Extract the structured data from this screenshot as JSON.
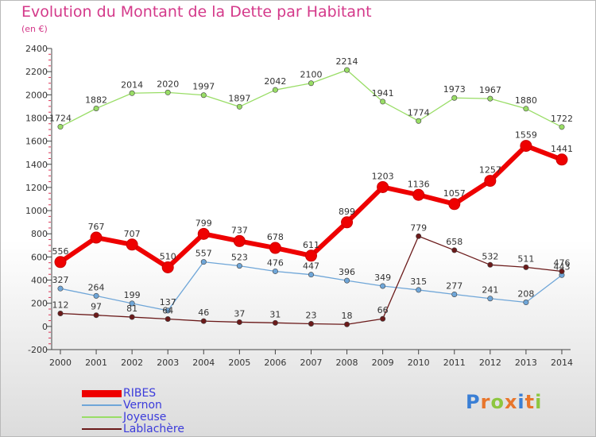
{
  "title": "Evolution du Montant de la Dette par Habitant",
  "unit": "(en €)",
  "logo": "Proxiti",
  "chart_data": {
    "type": "line",
    "x": [
      "2000",
      "2001",
      "2002",
      "2003",
      "2004",
      "2005",
      "2006",
      "2007",
      "2008",
      "2009",
      "2010",
      "2011",
      "2012",
      "2013",
      "2014"
    ],
    "ylim": [
      -200,
      2400
    ],
    "yticks": [
      -200,
      0,
      200,
      400,
      600,
      800,
      1000,
      1200,
      1400,
      1600,
      1800,
      2000,
      2200,
      2400
    ],
    "grid": false,
    "legend_position": "bottom-left",
    "series": [
      {
        "name": "RIBES",
        "color": "#ee0000",
        "width": 6,
        "marker": 7,
        "values": [
          556,
          767,
          707,
          510,
          799,
          737,
          678,
          611,
          899,
          1203,
          1136,
          1057,
          1257,
          1559,
          1441
        ]
      },
      {
        "name": "Vernon",
        "color": "#6fa6d8",
        "width": 1.3,
        "marker": 3.2,
        "values": [
          327,
          264,
          199,
          137,
          557,
          523,
          476,
          447,
          396,
          349,
          315,
          277,
          241,
          208,
          443
        ]
      },
      {
        "name": "Joyeuse",
        "color": "#99dd66",
        "width": 1.3,
        "marker": 3.2,
        "values": [
          1724,
          1882,
          2014,
          2020,
          1997,
          1897,
          2042,
          2100,
          2214,
          1941,
          1774,
          1973,
          1967,
          1880,
          1722
        ]
      },
      {
        "name": "Lablachère",
        "color": "#6b1a1a",
        "width": 1.3,
        "marker": 3.2,
        "values": [
          112,
          97,
          81,
          64,
          46,
          37,
          31,
          23,
          18,
          66,
          779,
          658,
          532,
          511,
          476
        ]
      }
    ]
  }
}
